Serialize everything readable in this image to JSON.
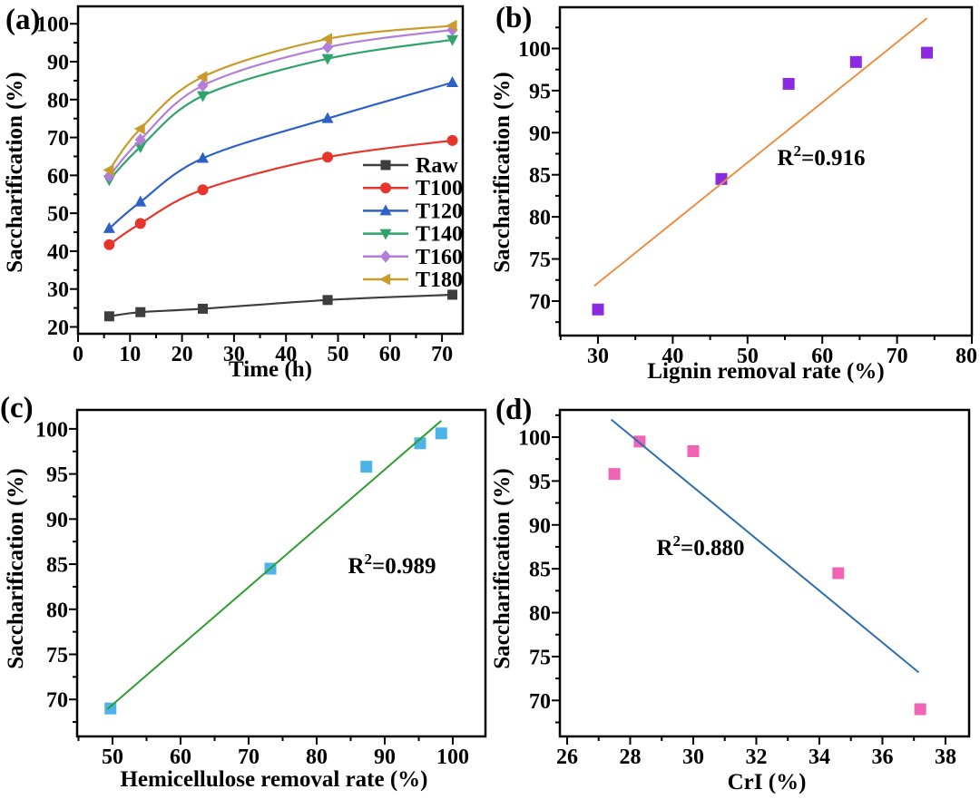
{
  "figure": {
    "background": "#ffffff",
    "axis_color": "#000000",
    "text_color": "#000000"
  },
  "chart_data": [
    {
      "panel": "a",
      "label": "(a)",
      "type": "line",
      "xlabel": "Time (h)",
      "ylabel": "Saccharification (%)",
      "xlim": [
        0,
        74
      ],
      "ylim": [
        18.2,
        104.6
      ],
      "xticks": [
        0,
        10,
        20,
        30,
        40,
        50,
        60,
        70
      ],
      "xminor": 5,
      "yticks": [
        20,
        30,
        40,
        50,
        60,
        70,
        80,
        90,
        100
      ],
      "yminor": 5,
      "grid": false,
      "x": [
        6,
        12,
        24,
        48,
        72
      ],
      "series": [
        {
          "name": "Raw",
          "marker": "square",
          "color": "#3d3d3d",
          "values": [
            22.8,
            23.9,
            24.8,
            27.1,
            28.5
          ]
        },
        {
          "name": "T100",
          "marker": "circle",
          "color": "#e7352c",
          "values": [
            41.7,
            47.3,
            56.2,
            64.8,
            69.2
          ]
        },
        {
          "name": "T120",
          "marker": "triangle-up",
          "color": "#2d61c6",
          "values": [
            46.0,
            53.0,
            64.5,
            75.0,
            84.5
          ]
        },
        {
          "name": "T140",
          "marker": "triangle-down",
          "color": "#2fa36b",
          "values": [
            58.8,
            67.5,
            81.0,
            90.8,
            95.8
          ]
        },
        {
          "name": "T160",
          "marker": "diamond",
          "color": "#b27ed8",
          "values": [
            59.8,
            69.4,
            83.7,
            93.8,
            98.4
          ]
        },
        {
          "name": "T180",
          "marker": "triangle-left",
          "color": "#c89b2b",
          "values": [
            61.4,
            72.3,
            86.0,
            96.0,
            99.5
          ]
        }
      ],
      "legend": {
        "position": "inside-right-middle"
      }
    },
    {
      "panel": "b",
      "label": "(b)",
      "type": "scatter",
      "xlabel": "Lignin removal rate (%)",
      "ylabel": "Saccharification (%)",
      "xlim": [
        24.9,
        80
      ],
      "ylim": [
        65.9,
        104.9
      ],
      "xticks": [
        30,
        40,
        50,
        60,
        70,
        80
      ],
      "xminor": 5,
      "yticks": [
        70,
        75,
        80,
        85,
        90,
        95,
        100
      ],
      "yminor": 2.5,
      "grid": false,
      "points": [
        [
          30,
          69
        ],
        [
          46.5,
          84.5
        ],
        [
          55.5,
          95.8
        ],
        [
          64.5,
          98.4
        ],
        [
          74,
          99.5
        ]
      ],
      "marker": {
        "shape": "square",
        "color": "#8a2be2"
      },
      "trendline": {
        "x1": 29.5,
        "y1": 71.8,
        "x2": 74,
        "y2": 103.6,
        "color": "#ec8e44"
      },
      "annotation": {
        "text": "R²=0.916"
      }
    },
    {
      "panel": "c",
      "label": "(c)",
      "type": "scatter",
      "xlabel": "Hemicellulose removal rate (%)",
      "ylabel": "Saccharification (%)",
      "xlim": [
        44.8,
        104.8
      ],
      "ylim": [
        65.9,
        102.1
      ],
      "xticks": [
        50,
        60,
        70,
        80,
        90,
        100
      ],
      "xminor": 5,
      "yticks": [
        70,
        75,
        80,
        85,
        90,
        95,
        100
      ],
      "yminor": 2.5,
      "grid": false,
      "points": [
        [
          49.7,
          69
        ],
        [
          73.2,
          84.5
        ],
        [
          87.3,
          95.8
        ],
        [
          95.2,
          98.4
        ],
        [
          98.3,
          99.5
        ]
      ],
      "marker": {
        "shape": "square",
        "color": "#4db4e9"
      },
      "trendline": {
        "x1": 49.2,
        "y1": 68.9,
        "x2": 98.3,
        "y2": 100.9,
        "color": "#2e9e31"
      },
      "annotation": {
        "text": "R²=0.989"
      }
    },
    {
      "panel": "d",
      "label": "(d)",
      "type": "scatter",
      "xlabel": "CrI (%)",
      "ylabel": "Saccharification (%)",
      "xlim": [
        25.77,
        38.75
      ],
      "ylim": [
        65.9,
        103.1
      ],
      "xticks": [
        26,
        28,
        30,
        32,
        34,
        36,
        38
      ],
      "xminor": 1,
      "yticks": [
        70,
        75,
        80,
        85,
        90,
        95,
        100
      ],
      "yminor": 2.5,
      "grid": false,
      "points": [
        [
          27.5,
          95.8
        ],
        [
          28.3,
          99.5
        ],
        [
          30,
          98.4
        ],
        [
          34.6,
          84.5
        ],
        [
          37.2,
          69
        ]
      ],
      "marker": {
        "shape": "square",
        "color": "#f163b5"
      },
      "trendline": {
        "x1": 27.4,
        "y1": 102,
        "x2": 37.15,
        "y2": 73.2,
        "color": "#2f6fad"
      },
      "annotation": {
        "text": "R²=0.880"
      }
    }
  ]
}
